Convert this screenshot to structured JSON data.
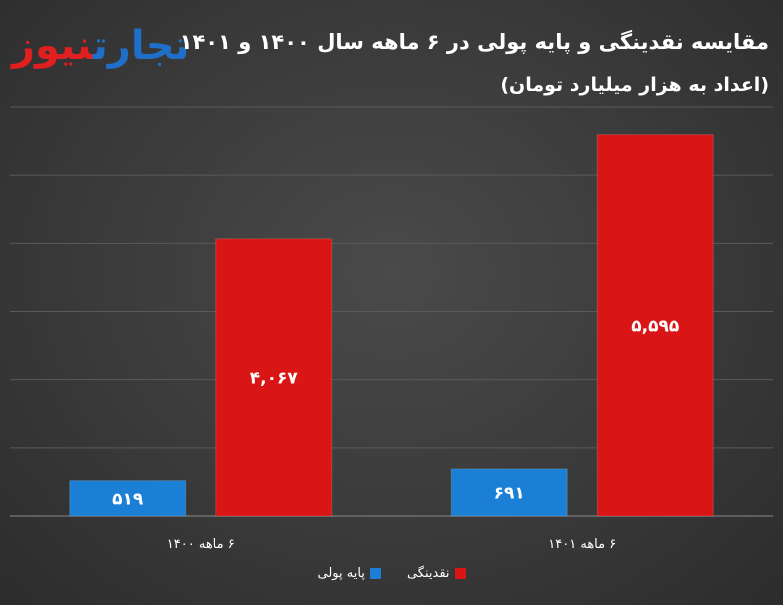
{
  "logo": {
    "part_blue": "تجارت",
    "part_red": "نیوز"
  },
  "title": "مقایسه نقدینگی و پایه پولی در ۶ ماهه سال ۱۴۰۰ و ۱۴۰۱",
  "subtitle": "(اعداد به هزار میلیارد تومان)",
  "colors": {
    "background": "#3d3d3d",
    "monetary_base": "#1b7fd6",
    "liquidity": "#d91515",
    "text": "#ffffff",
    "gridline": "#5a5a5a"
  },
  "legend": [
    {
      "label": "نقدینگی",
      "color": "#d91515"
    },
    {
      "label": "پایه پولی",
      "color": "#1b7fd6"
    }
  ],
  "chart_data": {
    "type": "bar",
    "categories": [
      "۶ ماهه ۱۴۰۰",
      "۶ ماهه ۱۴۰۱"
    ],
    "series": [
      {
        "name": "پایه پولی",
        "values": [
          519,
          691
        ],
        "labels": [
          "۵۱۹",
          "۶۹۱"
        ],
        "color": "#1b7fd6"
      },
      {
        "name": "نقدینگی",
        "values": [
          4067,
          5595
        ],
        "labels": [
          "۴,۰۶۷",
          "۵,۵۹۵"
        ],
        "color": "#d91515"
      }
    ],
    "ylim": [
      0,
      6000
    ],
    "grid": true,
    "legend_position": "bottom"
  }
}
